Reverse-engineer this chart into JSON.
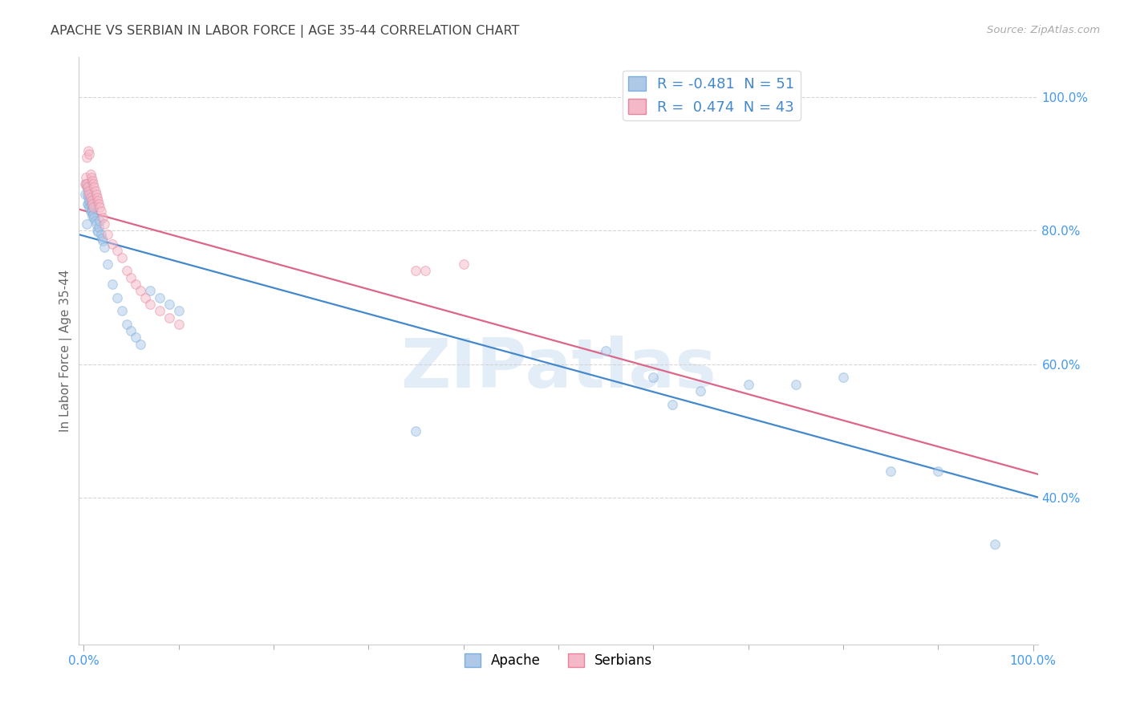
{
  "title": "APACHE VS SERBIAN IN LABOR FORCE | AGE 35-44 CORRELATION CHART",
  "source": "Source: ZipAtlas.com",
  "ylabel": "In Labor Force | Age 35-44",
  "watermark": "ZIPatlas",
  "apache_R": -0.481,
  "apache_N": 51,
  "serbian_R": 0.474,
  "serbian_N": 43,
  "apache_color": "#aec8e8",
  "apache_edge": "#7aaedb",
  "serbian_color": "#f4b8c8",
  "serbian_edge": "#e8849a",
  "apache_line_color": "#4488cc",
  "serbian_line_color": "#dd6688",
  "xlim": [
    -0.005,
    1.005
  ],
  "ylim": [
    0.18,
    1.06
  ],
  "ytick_positions": [
    0.4,
    0.6,
    0.8,
    1.0
  ],
  "ytick_labels": [
    "40.0%",
    "60.0%",
    "80.0%",
    "100.0%"
  ],
  "xtick_label_left": "0.0%",
  "xtick_label_right": "100.0%",
  "grid_color": "#cccccc",
  "background_color": "#ffffff",
  "title_color": "#444444",
  "axis_label_color": "#666666",
  "tick_color": "#4499ee",
  "source_color": "#aaaaaa",
  "marker_size": 70,
  "marker_alpha": 0.5,
  "line_width": 1.6,
  "apache_x": [
    0.001,
    0.002,
    0.003,
    0.003,
    0.004,
    0.004,
    0.005,
    0.005,
    0.006,
    0.006,
    0.007,
    0.007,
    0.008,
    0.008,
    0.009,
    0.009,
    0.01,
    0.011,
    0.012,
    0.013,
    0.014,
    0.015,
    0.016,
    0.017,
    0.018,
    0.019,
    0.02,
    0.022,
    0.025,
    0.03,
    0.035,
    0.04,
    0.045,
    0.05,
    0.055,
    0.06,
    0.07,
    0.08,
    0.09,
    0.1,
    0.35,
    0.55,
    0.6,
    0.62,
    0.65,
    0.7,
    0.75,
    0.8,
    0.85,
    0.9,
    0.96
  ],
  "apache_y": [
    0.855,
    0.87,
    0.81,
    0.865,
    0.84,
    0.855,
    0.85,
    0.84,
    0.845,
    0.835,
    0.84,
    0.83,
    0.838,
    0.828,
    0.832,
    0.822,
    0.825,
    0.82,
    0.815,
    0.81,
    0.8,
    0.798,
    0.805,
    0.815,
    0.795,
    0.788,
    0.785,
    0.775,
    0.75,
    0.72,
    0.7,
    0.68,
    0.66,
    0.65,
    0.64,
    0.63,
    0.71,
    0.7,
    0.69,
    0.68,
    0.5,
    0.62,
    0.58,
    0.54,
    0.56,
    0.57,
    0.57,
    0.58,
    0.44,
    0.44,
    0.33
  ],
  "serbian_x": [
    0.001,
    0.002,
    0.003,
    0.003,
    0.004,
    0.005,
    0.005,
    0.006,
    0.006,
    0.007,
    0.007,
    0.008,
    0.008,
    0.009,
    0.009,
    0.01,
    0.01,
    0.011,
    0.012,
    0.013,
    0.014,
    0.015,
    0.016,
    0.017,
    0.018,
    0.02,
    0.022,
    0.025,
    0.03,
    0.035,
    0.04,
    0.045,
    0.05,
    0.055,
    0.06,
    0.065,
    0.07,
    0.08,
    0.09,
    0.1,
    0.35,
    0.36,
    0.4
  ],
  "serbian_y": [
    0.87,
    0.88,
    0.87,
    0.91,
    0.865,
    0.92,
    0.86,
    0.915,
    0.855,
    0.885,
    0.85,
    0.88,
    0.845,
    0.875,
    0.84,
    0.87,
    0.835,
    0.865,
    0.86,
    0.855,
    0.85,
    0.845,
    0.84,
    0.835,
    0.83,
    0.82,
    0.81,
    0.795,
    0.78,
    0.77,
    0.76,
    0.74,
    0.73,
    0.72,
    0.71,
    0.7,
    0.69,
    0.68,
    0.67,
    0.66,
    0.74,
    0.74,
    0.75
  ]
}
